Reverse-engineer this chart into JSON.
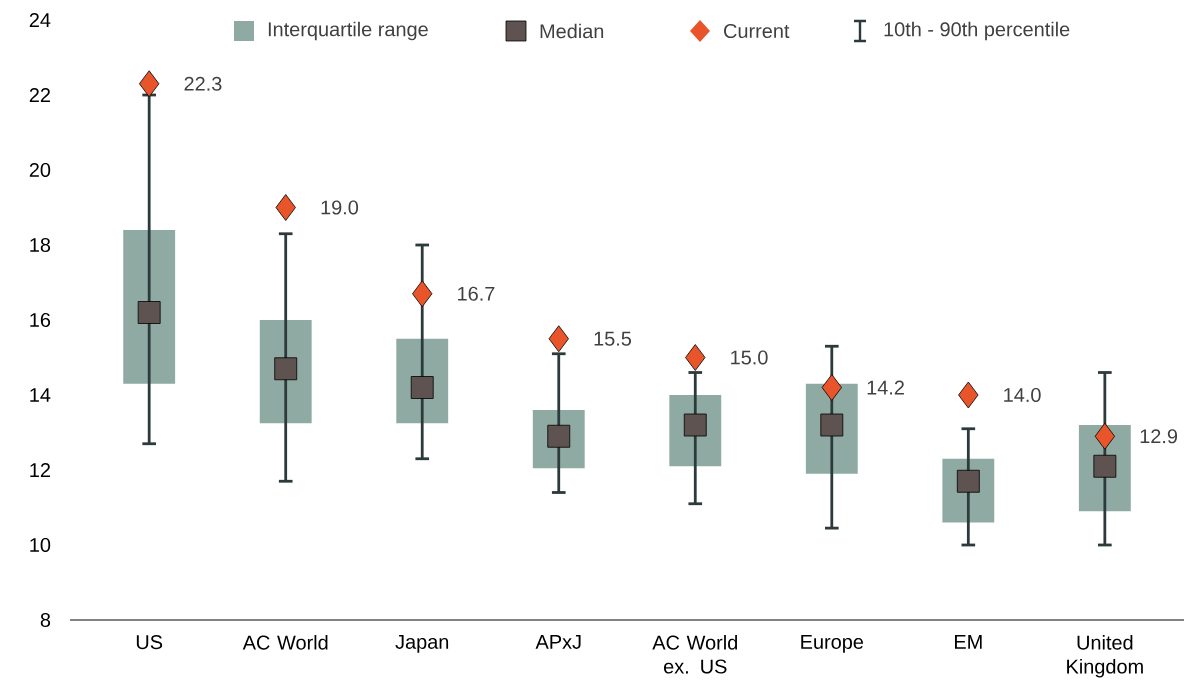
{
  "chart_data": {
    "type": "box",
    "categories": [
      "US",
      "AC World",
      "Japan",
      "APxJ",
      "AC World ex. US",
      "Europe",
      "EM",
      "United Kingdom"
    ],
    "series": [
      {
        "name": "Interquartile range",
        "type": "box",
        "color": "#8faaa3",
        "boxes": [
          {
            "low": 12.7,
            "q1": 14.3,
            "median": 16.2,
            "q3": 18.4,
            "high": 22.0
          },
          {
            "low": 11.7,
            "q1": 13.25,
            "median": 14.7,
            "q3": 16.0,
            "high": 18.3
          },
          {
            "low": 12.3,
            "q1": 13.25,
            "median": 14.2,
            "q3": 15.5,
            "high": 18.0
          },
          {
            "low": 11.4,
            "q1": 12.05,
            "median": 12.9,
            "q3": 13.6,
            "high": 15.1
          },
          {
            "low": 11.1,
            "q1": 12.1,
            "median": 13.2,
            "q3": 14.0,
            "high": 14.6
          },
          {
            "low": 10.45,
            "q1": 11.9,
            "median": 13.2,
            "q3": 14.3,
            "high": 15.3
          },
          {
            "low": 10.0,
            "q1": 10.6,
            "median": 11.7,
            "q3": 12.3,
            "high": 13.1
          },
          {
            "low": 10.0,
            "q1": 10.9,
            "median": 12.1,
            "q3": 13.2,
            "high": 14.6
          }
        ]
      },
      {
        "name": "Current",
        "type": "scatter",
        "marker": "diamond",
        "color": "#e8552a",
        "x": [
          "US",
          "AC World",
          "Japan",
          "APxJ",
          "AC World ex. US",
          "Europe",
          "EM",
          "United Kingdom"
        ],
        "values": [
          22.3,
          19.0,
          16.7,
          15.5,
          15.0,
          14.2,
          14.0,
          12.9
        ],
        "value_labels": [
          "22.3",
          "19.0",
          "16.7",
          "15.5",
          "15.0",
          "14.2",
          "14.0",
          "12.9"
        ]
      }
    ],
    "annotations": [
      "Median",
      "10th - 90th percentile"
    ],
    "ylim": [
      8,
      24
    ],
    "yticks": [
      8,
      10,
      12,
      14,
      16,
      18,
      20,
      22,
      24
    ],
    "grid": false,
    "legend": "top"
  }
}
